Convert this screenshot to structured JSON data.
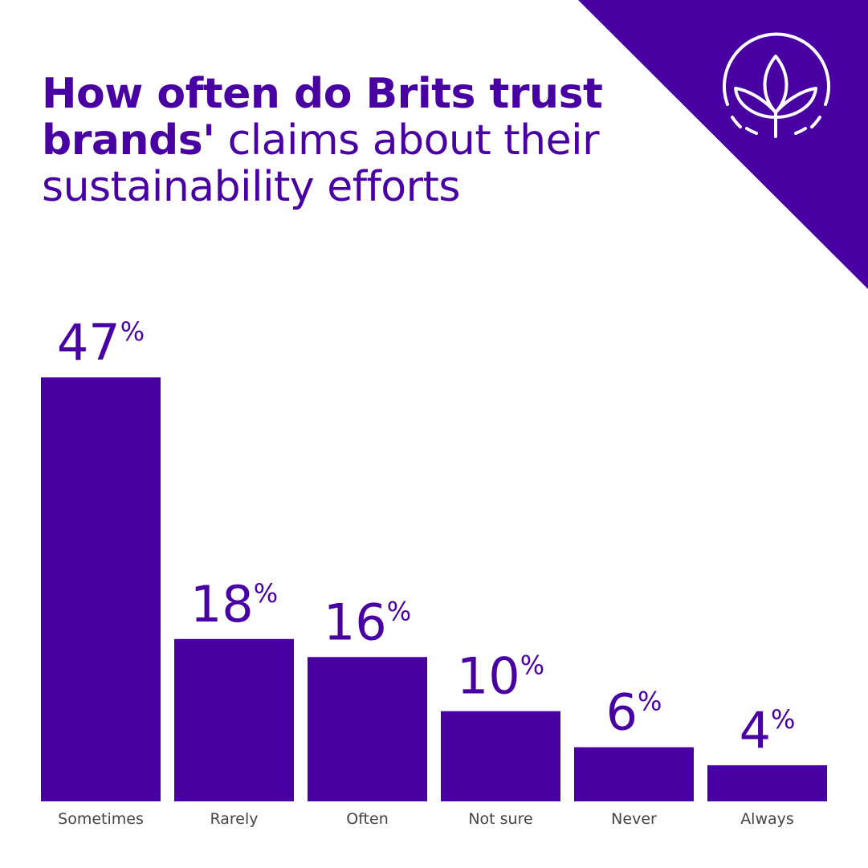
{
  "header": {
    "title_bold_line1": "How often do Brits trust",
    "title_bold_line2": "brands'",
    "title_light_line2": " claims about their",
    "title_light_line3": "sustainability efforts",
    "logo_icon": "leaf-sprout-icon"
  },
  "colors": {
    "accent": "#4800a3",
    "background": "#ffffff",
    "label": "#444444"
  },
  "chart_data": {
    "type": "bar",
    "title": "How often do Brits trust brands' claims about their sustainability efforts",
    "categories": [
      "Sometimes",
      "Rarely",
      "Often",
      "Not sure",
      "Never",
      "Always"
    ],
    "values": [
      47,
      18,
      16,
      10,
      6,
      4
    ],
    "value_labels": [
      "47",
      "18",
      "16",
      "10",
      "6",
      "4"
    ],
    "unit": "%",
    "xlabel": "",
    "ylabel": "",
    "ylim": [
      0,
      47
    ],
    "grid": false,
    "legend": "none"
  }
}
